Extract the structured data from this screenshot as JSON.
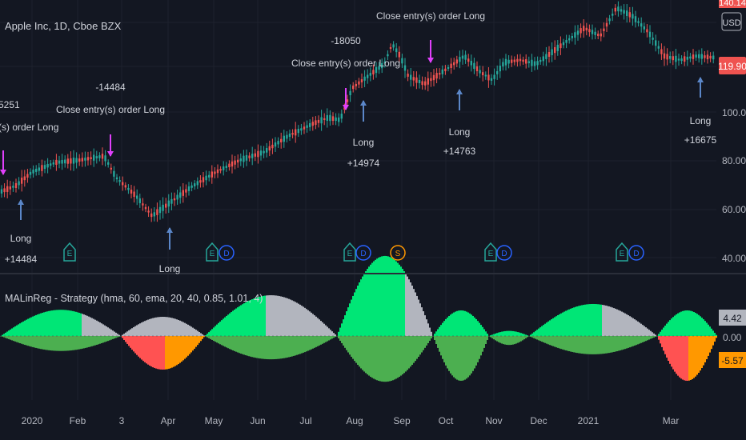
{
  "symbol_title": "Apple Inc, 1D, Cboe BZX",
  "currency_button": "USD",
  "price_badge": "119.90",
  "price_badge_top": "140.14",
  "price_axis": [
    "100.00",
    "80.00",
    "60.00",
    "40.00"
  ],
  "time_axis": [
    "2020",
    "Feb",
    "3",
    "Apr",
    "May",
    "Jun",
    "Jul",
    "Aug",
    "Sep",
    "Oct",
    "Nov",
    "Dec",
    "2021",
    "Mar"
  ],
  "indicator_title": "MALinReg - Strategy (hma, 60, ema, 20, 40, 0.85, 1.01, 4)",
  "indicator_axis": [
    "0.00"
  ],
  "indicator_badge_pos": "4.42",
  "indicator_badge_neg": "-5.57",
  "trade_labels": [
    {
      "lines": [
        "5251",
        "(s) order Long"
      ],
      "kind": "close"
    },
    {
      "lines": [
        "-14484",
        "Close entry(s) order Long"
      ],
      "kind": "close"
    },
    {
      "lines": [
        "-18050",
        "Close entry(s) order Long"
      ],
      "kind": "close"
    },
    {
      "lines": [
        "Close entry(s) order Long"
      ],
      "kind": "close"
    },
    {
      "lines": [
        "Long",
        "+14484"
      ],
      "kind": "long"
    },
    {
      "lines": [
        "Long"
      ],
      "kind": "long"
    },
    {
      "lines": [
        "Long",
        "+14974"
      ],
      "kind": "long"
    },
    {
      "lines": [
        "Long",
        "+14763"
      ],
      "kind": "long"
    },
    {
      "lines": [
        "Long",
        "+16675"
      ],
      "kind": "long"
    }
  ],
  "event_markers": [
    {
      "letter": "E",
      "color": "#26a69a"
    },
    {
      "letter": "E",
      "color": "#26a69a"
    },
    {
      "letter": "D",
      "color": "#2962ff"
    },
    {
      "letter": "E",
      "color": "#26a69a"
    },
    {
      "letter": "D",
      "color": "#2962ff"
    },
    {
      "letter": "S",
      "color": "#ff9800"
    },
    {
      "letter": "E",
      "color": "#26a69a"
    },
    {
      "letter": "D",
      "color": "#2962ff"
    },
    {
      "letter": "E",
      "color": "#26a69a"
    },
    {
      "letter": "D",
      "color": "#2962ff"
    }
  ],
  "colors": {
    "background": "#131722",
    "up_candle": "#26a69a",
    "down_candle": "#ef5350",
    "long_arrow": "#5b87c9",
    "close_arrow": "#e040fb",
    "osc_green": "#00e676",
    "osc_dark_green": "#4caf50",
    "osc_gray": "#b2b5be",
    "osc_red": "#ff5252",
    "osc_orange": "#ff9800"
  }
}
